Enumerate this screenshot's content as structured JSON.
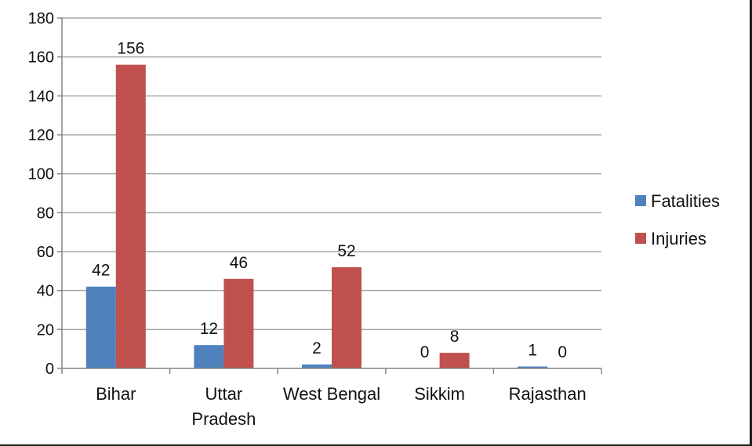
{
  "chart_data": {
    "type": "bar",
    "categories": [
      [
        "Bihar"
      ],
      [
        "Uttar",
        "Pradesh"
      ],
      [
        "West Bengal"
      ],
      [
        "Sikkim"
      ],
      [
        "Rajasthan"
      ]
    ],
    "series": [
      {
        "name": "Fatalities",
        "values": [
          42,
          12,
          2,
          0,
          1
        ],
        "color": "#4f81bd"
      },
      {
        "name": "Injuries",
        "values": [
          156,
          46,
          52,
          8,
          0
        ],
        "color": "#c0504d"
      }
    ],
    "ylim": [
      0,
      180
    ],
    "yticks": [
      0,
      20,
      40,
      60,
      80,
      100,
      120,
      140,
      160,
      180
    ],
    "grid": true,
    "legend": "right",
    "data_labels": true
  }
}
